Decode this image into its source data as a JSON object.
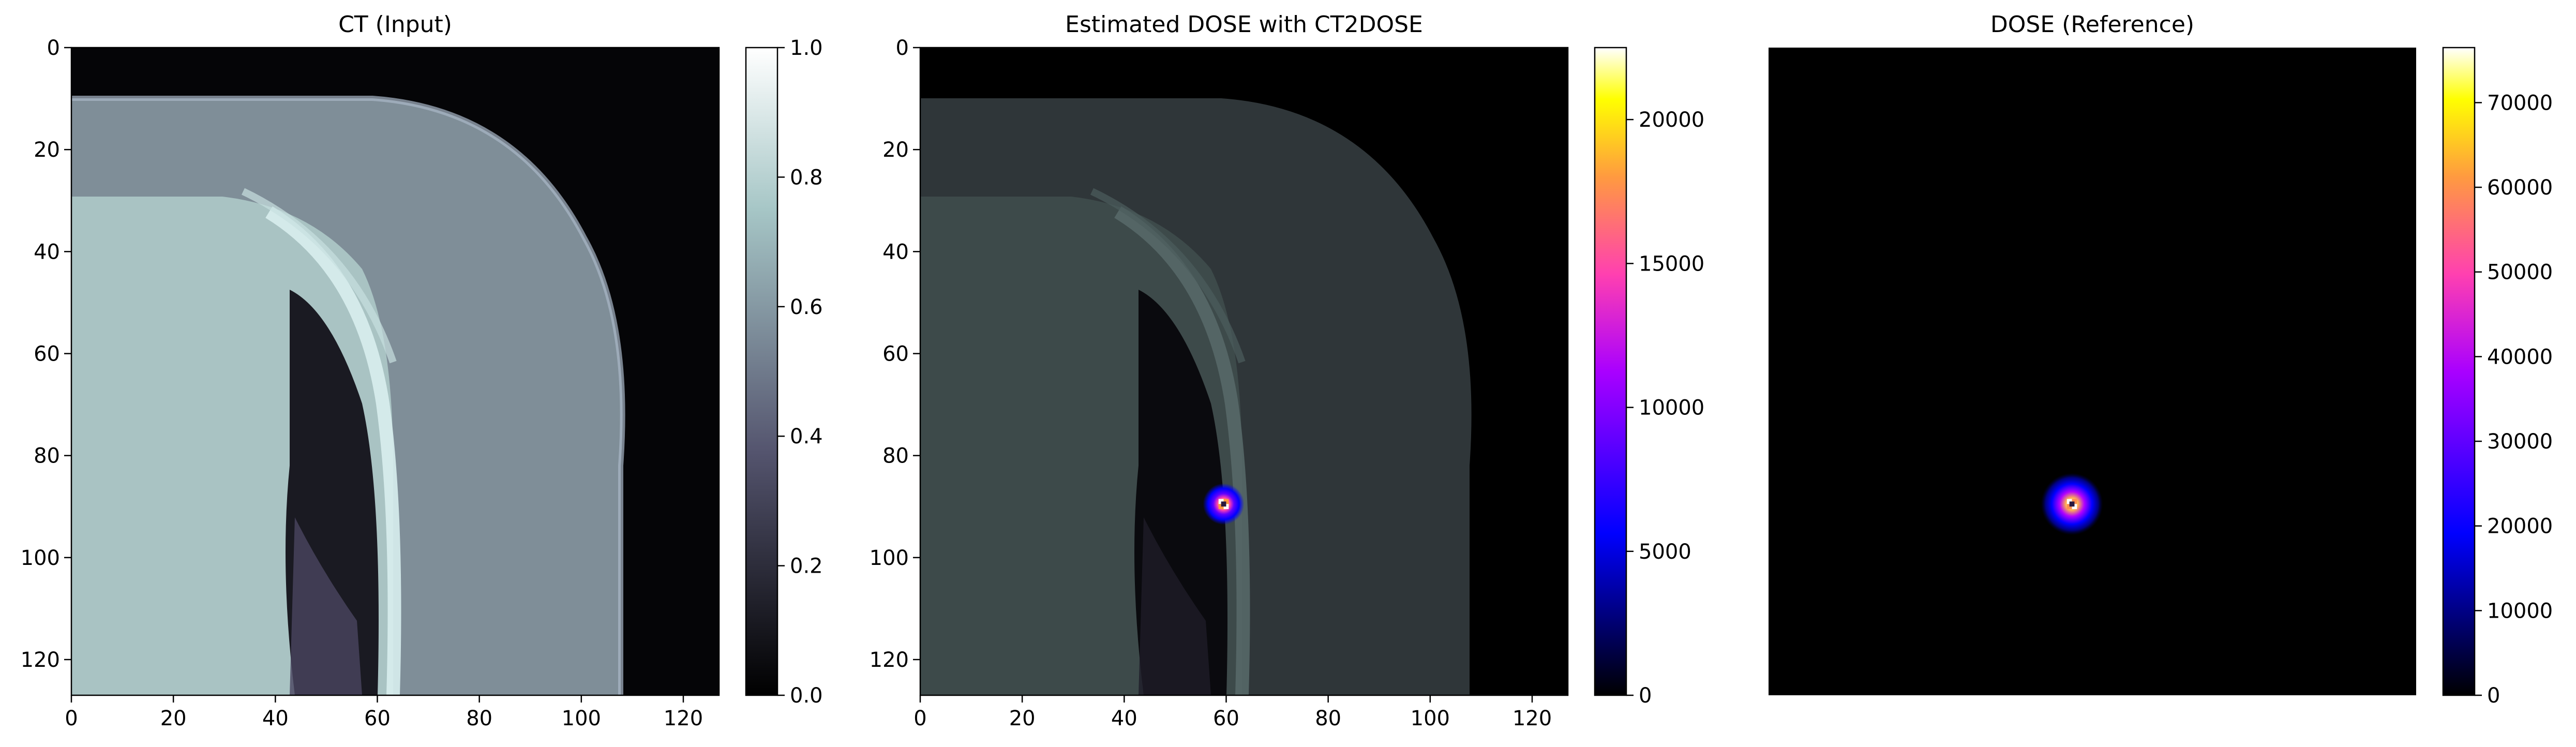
{
  "chart_data": [
    {
      "type": "heatmap",
      "title": "CT (Input)",
      "cmap": "bone",
      "xlim": [
        0,
        127
      ],
      "ylim": [
        127,
        0
      ],
      "xticks": [
        0,
        20,
        40,
        60,
        80,
        100,
        120
      ],
      "yticks": [
        0,
        20,
        40,
        60,
        80,
        100,
        120
      ],
      "colorbar": {
        "range": [
          0,
          1.0
        ],
        "ticks": [
          "0.0",
          "0.2",
          "0.4",
          "0.6",
          "0.8",
          "1.0"
        ],
        "tick_values": [
          0,
          0.2,
          0.4,
          0.6,
          0.8,
          1.0
        ]
      },
      "axes_visible": true
    },
    {
      "type": "heatmap",
      "title": "Estimated DOSE with CT2DOSE",
      "cmap": "gnuplot2 over bone",
      "xlim": [
        0,
        127
      ],
      "ylim": [
        127,
        0
      ],
      "xticks": [
        0,
        20,
        40,
        60,
        80,
        100,
        120
      ],
      "yticks": [
        0,
        20,
        40,
        60,
        80,
        100,
        120
      ],
      "colorbar": {
        "range": [
          0,
          22500
        ],
        "ticks": [
          "0",
          "5000",
          "10000",
          "15000",
          "20000"
        ],
        "tick_values": [
          0,
          5000,
          10000,
          15000,
          20000
        ]
      },
      "hotspot": {
        "x": 59,
        "y": 89
      },
      "axes_visible": true
    },
    {
      "type": "heatmap",
      "title": "DOSE (Reference)",
      "cmap": "gnuplot2",
      "xlim": [
        0,
        127
      ],
      "ylim": [
        127,
        0
      ],
      "colorbar": {
        "range": [
          0,
          76500
        ],
        "ticks": [
          "0",
          "10000",
          "20000",
          "30000",
          "40000",
          "50000",
          "60000",
          "70000"
        ],
        "tick_values": [
          0,
          10000,
          20000,
          30000,
          40000,
          50000,
          60000,
          70000
        ]
      },
      "hotspot": {
        "x": 59,
        "y": 89
      },
      "axes_visible": false
    }
  ],
  "colors": {
    "bone_dark": "#000000",
    "bone_mid": "#54546e",
    "bone_light": "#a6c6c6",
    "gnuplot2_low": "#0000ff",
    "gnuplot2_mid": "#ff00ff",
    "gnuplot2_high": "#ffff00"
  }
}
